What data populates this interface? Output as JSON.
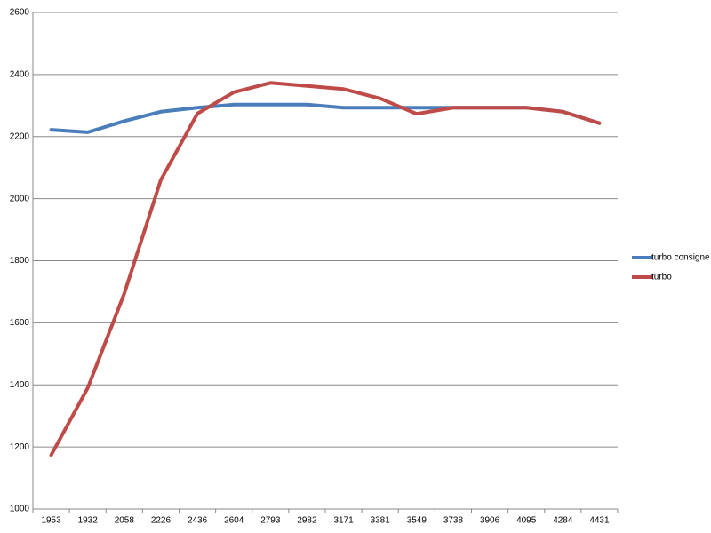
{
  "chart_data": {
    "type": "line",
    "categories": [
      "1953",
      "1932",
      "2058",
      "2226",
      "2436",
      "2604",
      "2793",
      "2982",
      "3171",
      "3381",
      "3549",
      "3738",
      "3906",
      "4095",
      "4284",
      "4431"
    ],
    "series": [
      {
        "name": "turbo consigne",
        "color": "#4a7ebb",
        "values": [
          2222,
          2214,
          2250,
          2280,
          2293,
          2303,
          2303,
          2303,
          2293,
          2293,
          2293,
          2293,
          2293,
          2293,
          2280,
          2243
        ]
      },
      {
        "name": "turbo",
        "color": "#be4b48",
        "values": [
          1174,
          1390,
          1694,
          2060,
          2274,
          2343,
          2373,
          2363,
          2353,
          2323,
          2273,
          2293,
          2293,
          2293,
          2280,
          2243
        ]
      }
    ],
    "ylim": [
      1000,
      2600
    ],
    "yticks": [
      1000,
      1200,
      1400,
      1600,
      1800,
      2000,
      2200,
      2400,
      2600
    ],
    "grid": true,
    "legend": "right"
  }
}
